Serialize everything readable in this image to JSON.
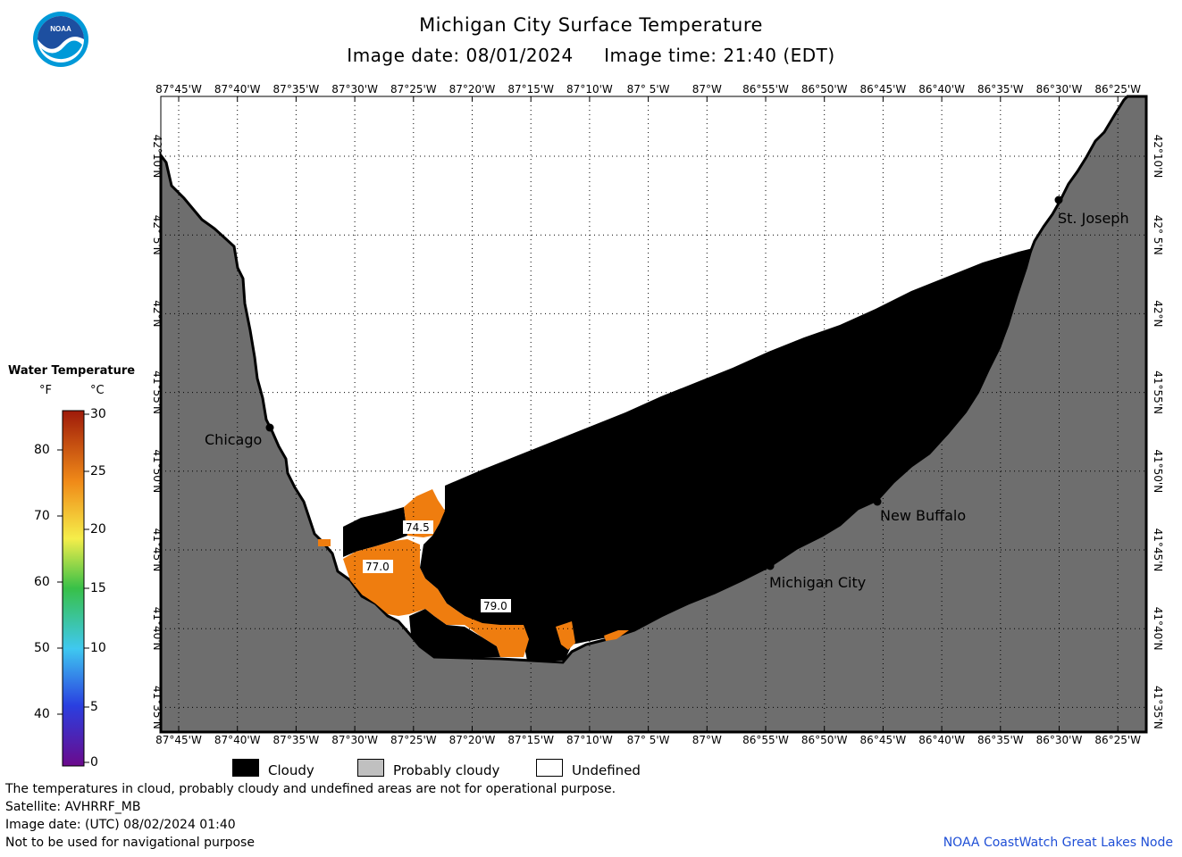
{
  "header": {
    "title": "Michigan City Surface Temperature",
    "subtitle_date": "Image date: 08/01/2024",
    "subtitle_time": "Image time: 21:40 (EDT)"
  },
  "logo": {
    "text": "NOAA",
    "colors": {
      "outer": "#0099d8",
      "inner": "#1d4fa0"
    }
  },
  "axes": {
    "lon_labels": [
      "87°45'W",
      "87°40'W",
      "87°35'W",
      "87°30'W",
      "87°25'W",
      "87°20'W",
      "87°15'W",
      "87°10'W",
      "87° 5'W",
      "87°W",
      "86°55'W",
      "86°50'W",
      "86°45'W",
      "86°40'W",
      "86°35'W",
      "86°30'W",
      "86°25'W"
    ],
    "lat_labels": [
      "42°10'N",
      "42° 5'N",
      "42°N",
      "41°55'N",
      "41°50'N",
      "41°45'N",
      "41°40'N",
      "41°35'N"
    ]
  },
  "places": [
    {
      "name": "Chicago"
    },
    {
      "name": "St. Joseph"
    },
    {
      "name": "New Buffalo"
    },
    {
      "name": "Michigan City"
    }
  ],
  "contours": [
    "74.5",
    "77.0",
    "79.0"
  ],
  "legend": {
    "title": "Water Temperature",
    "unit_f": "°F",
    "unit_c": "°C",
    "f_ticks": [
      "80",
      "70",
      "60",
      "50",
      "40"
    ],
    "c_ticks": [
      "30",
      "25",
      "20",
      "15",
      "10",
      "5",
      "0"
    ]
  },
  "key": {
    "cloudy": "Cloudy",
    "probably_cloudy": "Probably cloudy",
    "undefined": "Undefined"
  },
  "colors": {
    "land": "#6e6e6e",
    "cloud": "#000000",
    "warm_water": "#ef7d0f",
    "probably_cloudy": "#c0c0c0",
    "credit": "#1f4fd6"
  },
  "footer": {
    "disclaimer": "The temperatures in cloud, probably cloudy and undefined areas are not for operational purpose.",
    "satellite": "Satellite: AVHRRF_MB",
    "image_date_utc": "Image date: (UTC) 08/02/2024  01:40",
    "nav_warning": "Not to be used for navigational purpose",
    "credit": "NOAA CoastWatch Great Lakes Node"
  }
}
